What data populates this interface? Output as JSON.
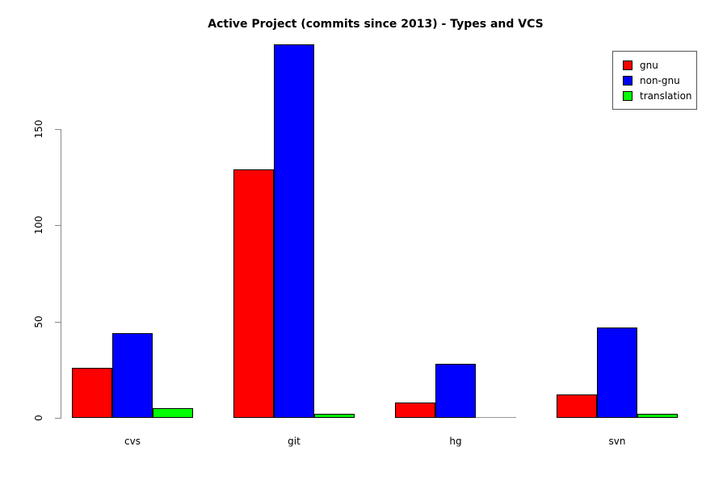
{
  "title": "Active Project (commits since 2013) - Types and VCS",
  "chart_data": {
    "type": "bar",
    "categories": [
      "cvs",
      "git",
      "hg",
      "svn"
    ],
    "series": [
      {
        "name": "gnu",
        "color": "#ff0000",
        "values": [
          26,
          129,
          8,
          12
        ]
      },
      {
        "name": "non-gnu",
        "color": "#0000ff",
        "values": [
          44,
          194,
          28,
          47
        ]
      },
      {
        "name": "translation",
        "color": "#00ff00",
        "values": [
          5,
          2,
          0,
          2
        ]
      }
    ],
    "yticks": [
      0,
      50,
      100,
      150
    ],
    "ylim": [
      0,
      195
    ],
    "xlabel": "",
    "ylabel": "",
    "grid": false,
    "legend_position": "top-right",
    "bar_border_color": "#000000",
    "axis_color": "#888888",
    "background_color": "#ffffff"
  }
}
